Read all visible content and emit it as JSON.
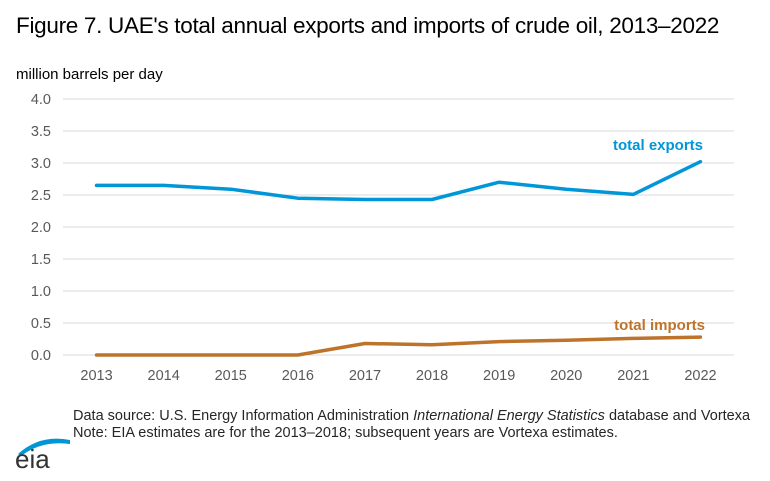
{
  "chart_data": {
    "type": "line",
    "title": "Figure 7. UAE's total annual exports and imports of crude oil, 2013–2022",
    "ylabel": "million barrels per day",
    "xlabel": "",
    "x": [
      "2013",
      "2014",
      "2015",
      "2016",
      "2017",
      "2018",
      "2019",
      "2020",
      "2021",
      "2022"
    ],
    "ylim": [
      0,
      4.0
    ],
    "yticks": [
      "0.0",
      "0.5",
      "1.0",
      "1.5",
      "2.0",
      "2.5",
      "3.0",
      "3.5",
      "4.0"
    ],
    "grid": true,
    "series": [
      {
        "name": "total exports",
        "color": "#0096D7",
        "values": [
          2.65,
          2.65,
          2.59,
          2.45,
          2.43,
          2.43,
          2.7,
          2.59,
          2.51,
          3.02
        ]
      },
      {
        "name": "total imports",
        "color": "#BD732A",
        "values": [
          0.0,
          0.0,
          0.0,
          0.0,
          0.18,
          0.16,
          0.21,
          0.23,
          0.26,
          0.28
        ]
      }
    ],
    "annotations": [
      "total exports",
      "total imports"
    ]
  },
  "footer": {
    "source_prefix": "Data source: U.S. Energy Information Administration ",
    "source_italic": "International Energy Statistics",
    "source_suffix": " database and Vortexa",
    "note": "Note: EIA estimates are for the 2013–2018; subsequent years are Vortexa estimates."
  },
  "logo": {
    "text": "eia",
    "arc_color": "#0096D7",
    "text_color": "#333333"
  }
}
